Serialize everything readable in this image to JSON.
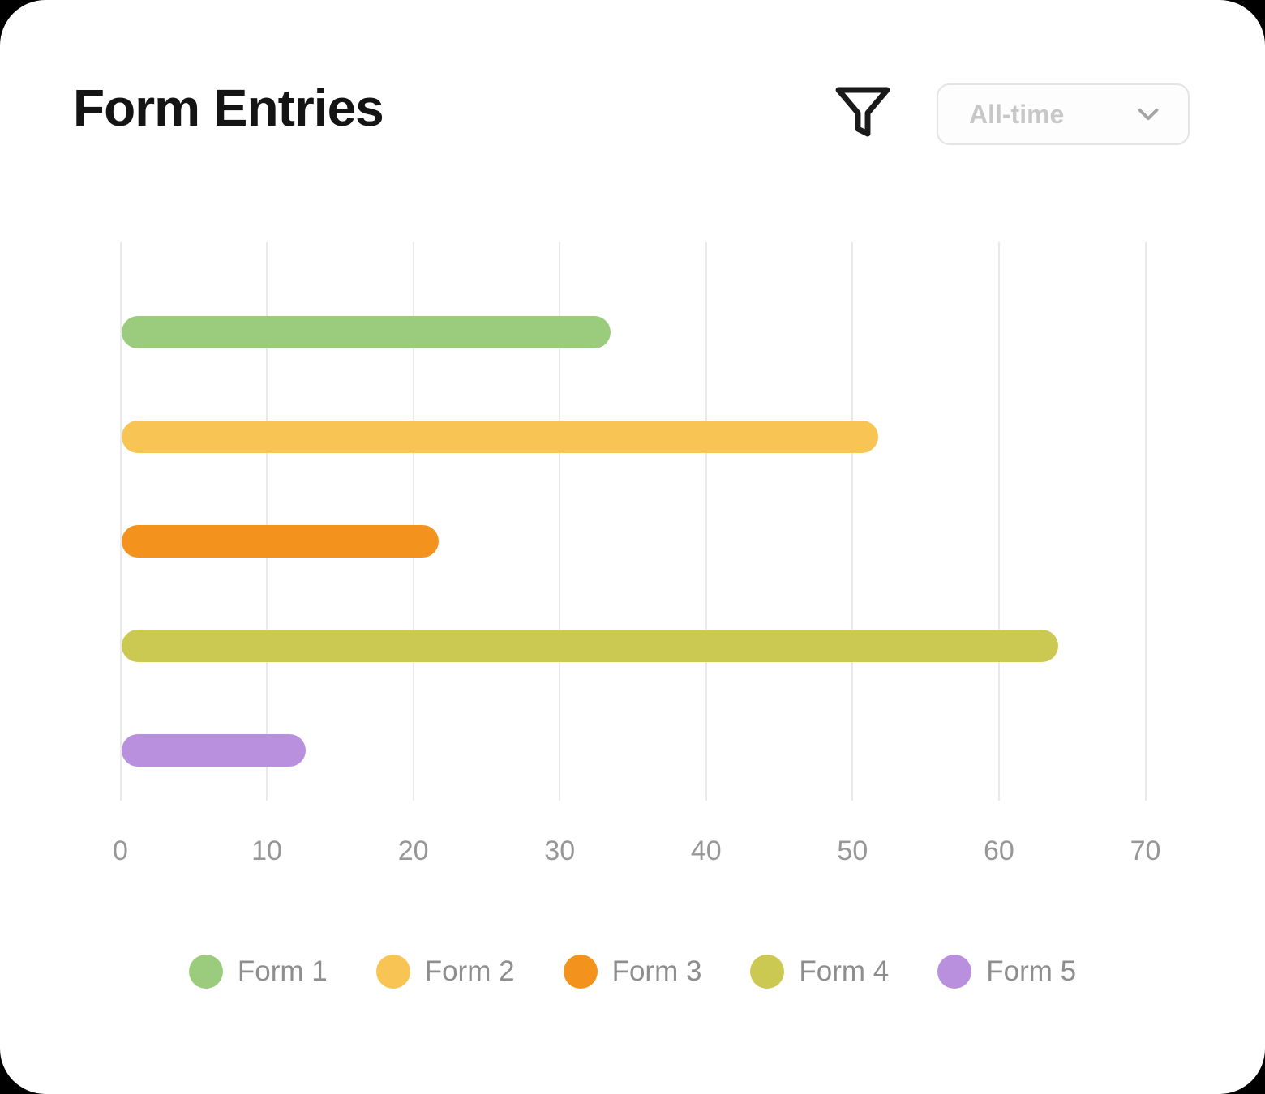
{
  "header": {
    "title": "Form Entries",
    "filter_icon": "funnel-icon",
    "time_select": {
      "value": "All-time",
      "chevron_icon": "chevron-down-icon"
    }
  },
  "chart_data": {
    "type": "bar",
    "orientation": "horizontal",
    "title": "Form Entries",
    "categories": [
      "Form 1",
      "Form 2",
      "Form 3",
      "Form 4",
      "Form 5"
    ],
    "values": [
      33.4,
      51.7,
      21.7,
      64,
      12.6
    ],
    "colors": [
      "#9BCB7D",
      "#F8C555",
      "#F4921E",
      "#CBC952",
      "#B990DE"
    ],
    "xlim": [
      0,
      70
    ],
    "x_ticks": [
      0,
      10,
      20,
      30,
      40,
      50,
      60,
      70
    ],
    "xlabel": "",
    "ylabel": "",
    "grid": true,
    "gridline_color": "#e9e9e9",
    "axis_label_color": "#979797",
    "legend_position": "bottom",
    "legend_text_color": "#8e8e8e"
  }
}
